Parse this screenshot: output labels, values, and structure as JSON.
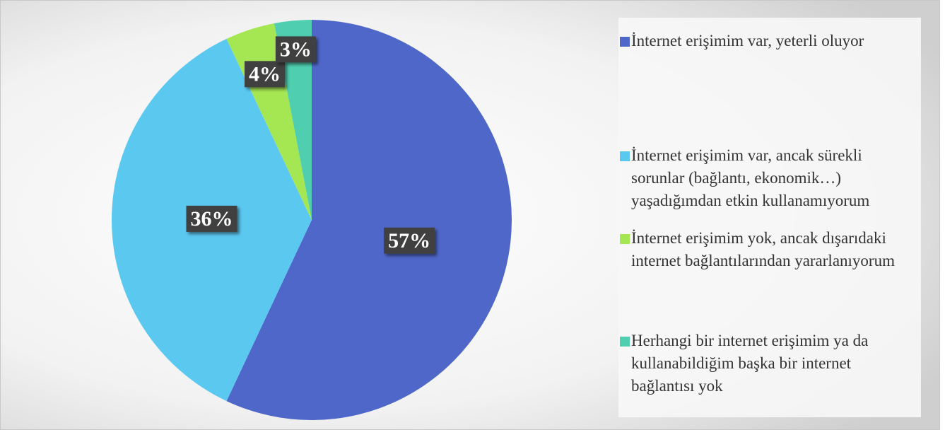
{
  "chart_data": {
    "type": "pie",
    "categories": [
      "İnternet erişimim var, yeterli oluyor",
      "İnternet erişimim var, ancak sürekli sorunlar (bağlantı, ekonomik…) yaşadığımdan etkin kullanamıyorum",
      "İnternet erişimim yok, ancak dışarıdaki internet bağlantılarından yararlanıyorum",
      "Herhangi bir internet erişimim ya da kullanabildiğim başka bir internet bağlantısı yok"
    ],
    "values": [
      57,
      36,
      4,
      3
    ],
    "value_labels": [
      "57%",
      "36%",
      "4%",
      "3%"
    ],
    "colors": [
      "#4f67c9",
      "#5bc8f0",
      "#a5e653",
      "#4fcfb0"
    ],
    "legend": "right"
  }
}
